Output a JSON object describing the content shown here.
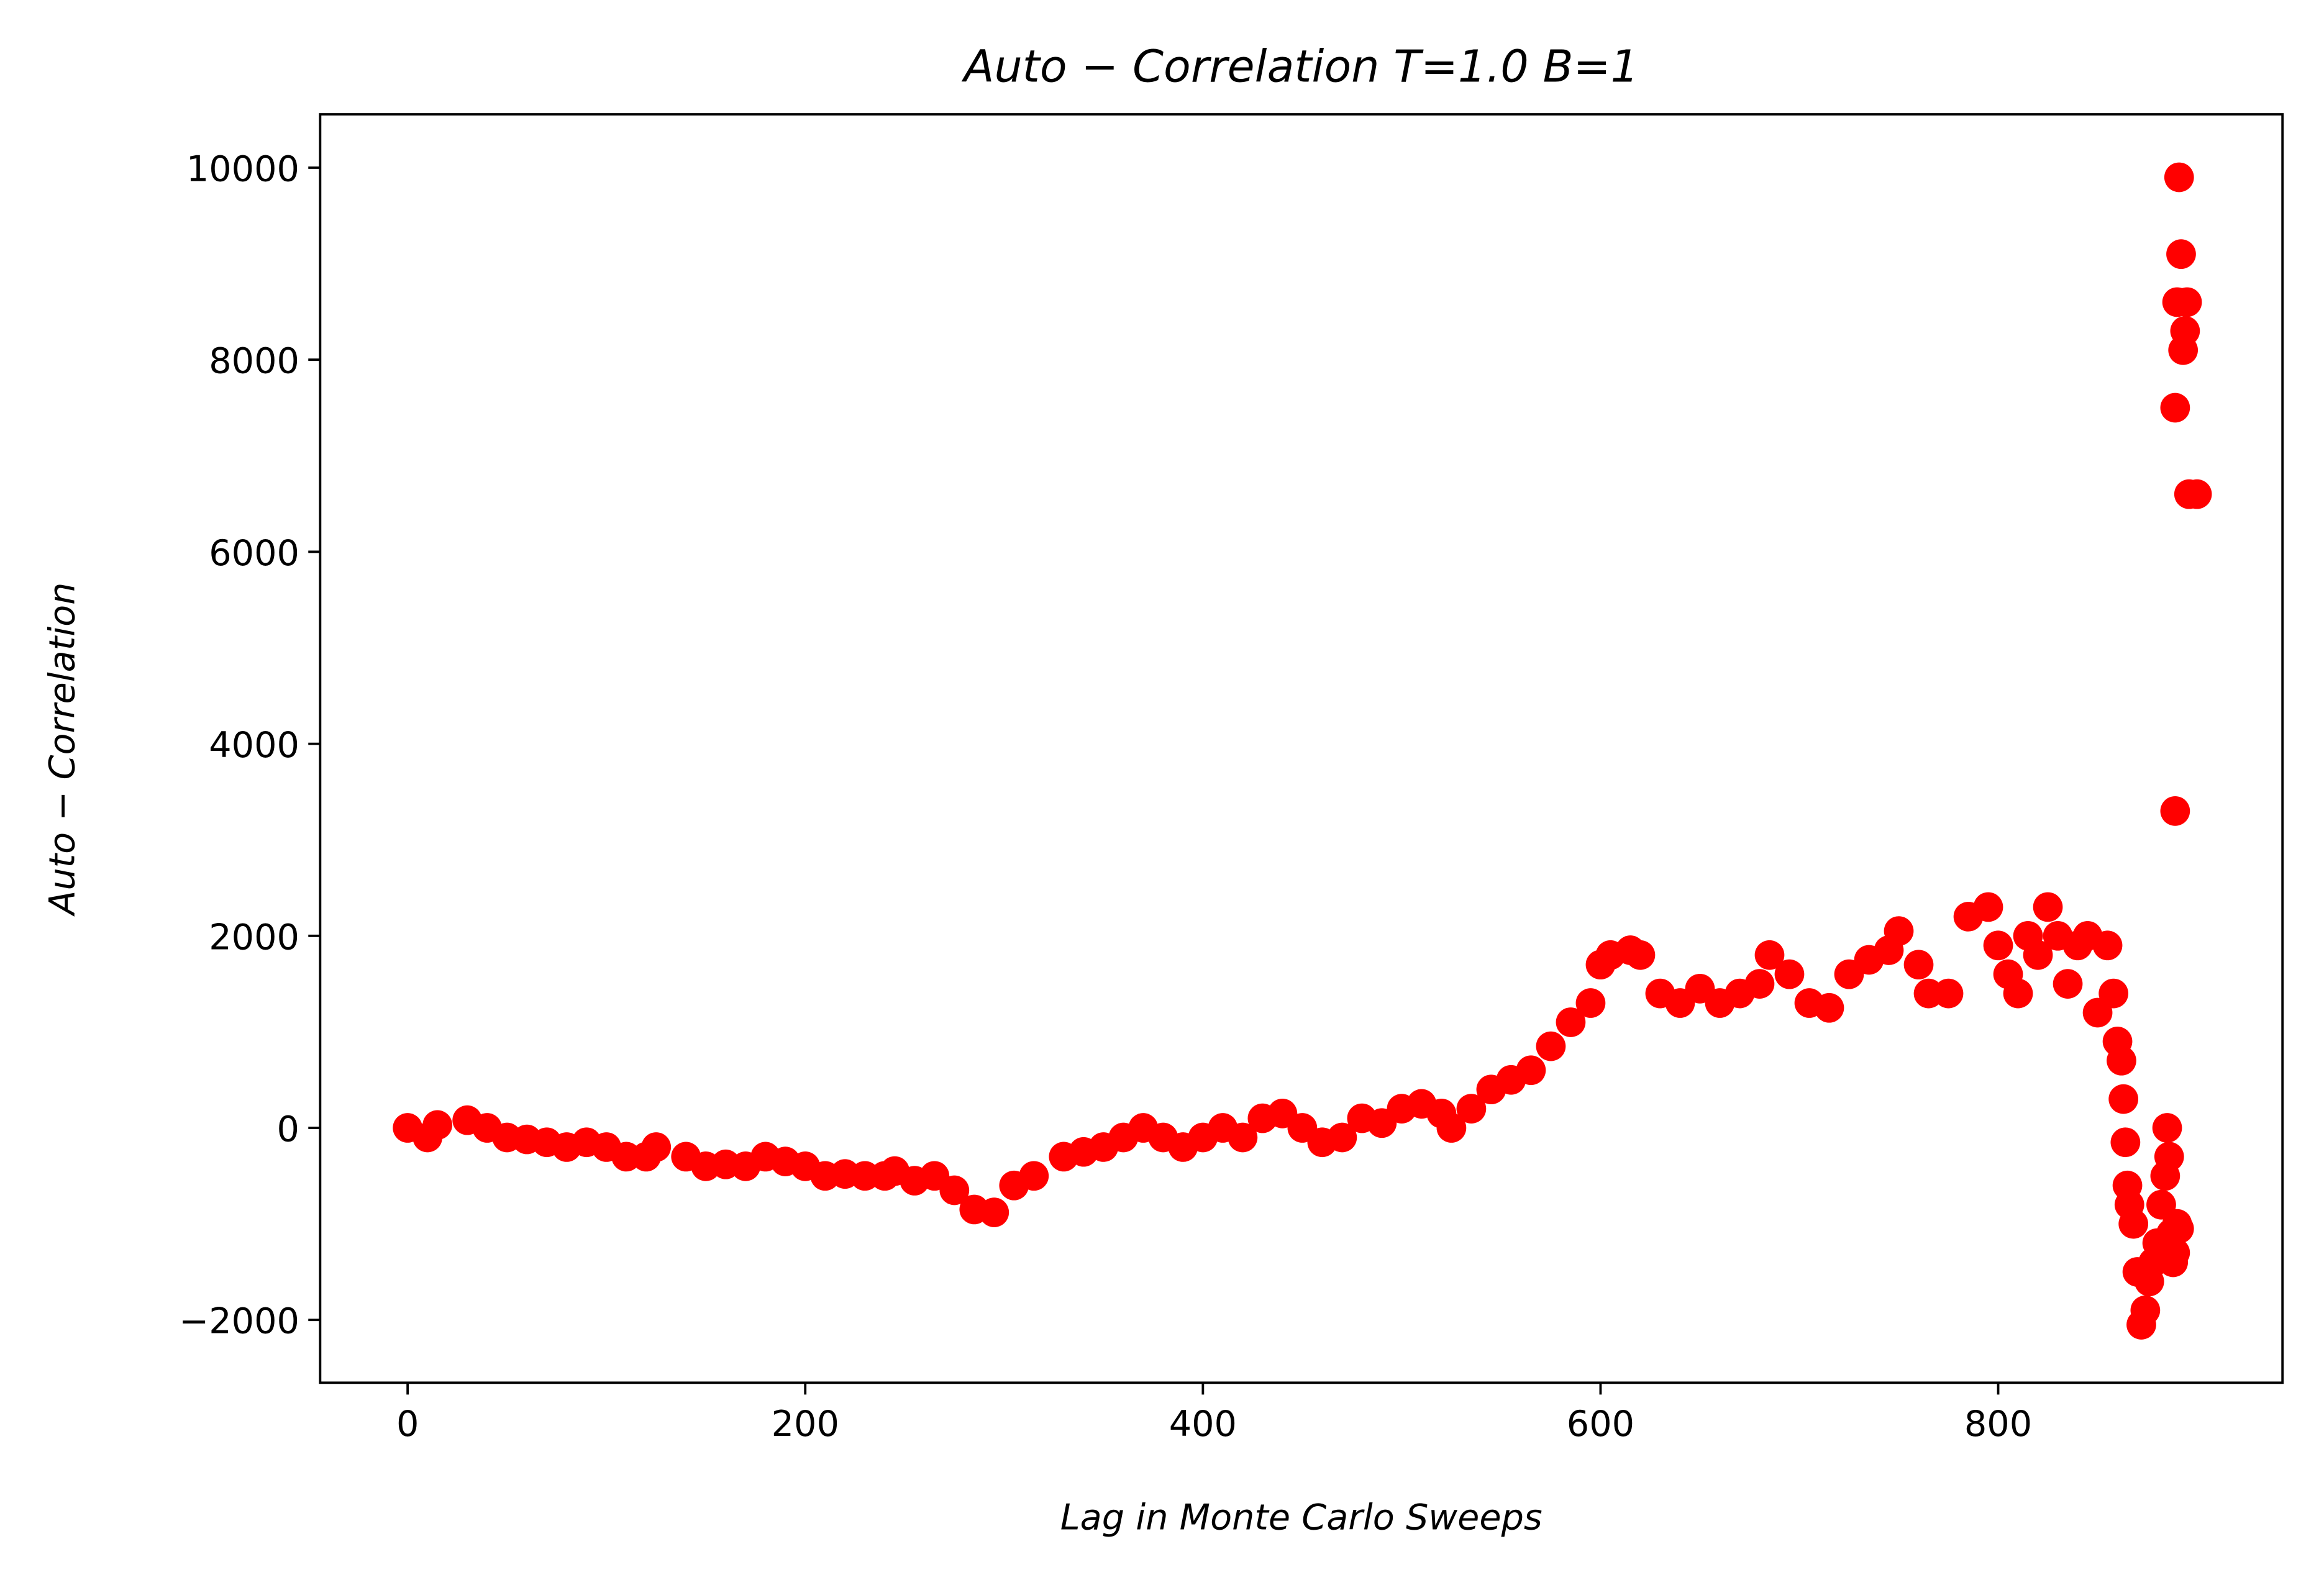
{
  "chart_data": {
    "type": "scatter",
    "title": "Auto − Correlation T=1.0 B=1",
    "xlabel": "Lag in Monte Carlo Sweeps",
    "ylabel": "Auto − Correlation",
    "color": "#ff0000",
    "x": [
      0,
      10,
      15,
      30,
      40,
      50,
      60,
      70,
      80,
      90,
      100,
      110,
      120,
      125,
      140,
      150,
      160,
      170,
      180,
      190,
      200,
      210,
      220,
      230,
      240,
      245,
      255,
      265,
      275,
      285,
      295,
      305,
      315,
      330,
      340,
      350,
      360,
      370,
      380,
      390,
      400,
      410,
      420,
      430,
      440,
      450,
      460,
      470,
      480,
      490,
      500,
      510,
      520,
      525,
      535,
      545,
      555,
      565,
      575,
      585,
      595,
      600,
      605,
      615,
      620,
      630,
      640,
      650,
      660,
      670,
      680,
      685,
      695,
      705,
      715,
      725,
      735,
      745,
      750,
      760,
      765,
      775,
      785,
      795,
      800,
      805,
      810,
      815,
      820,
      825,
      830,
      835,
      840,
      845,
      850,
      855,
      858,
      860,
      862,
      863,
      864,
      865,
      866,
      868,
      870,
      872,
      874,
      876,
      878,
      880,
      882,
      884,
      885,
      886,
      887,
      888,
      889,
      890,
      891,
      889,
      889,
      890,
      891,
      892,
      893,
      894,
      895,
      896,
      900
    ],
    "values": [
      0,
      -100,
      30,
      80,
      0,
      -100,
      -120,
      -150,
      -200,
      -150,
      -200,
      -300,
      -300,
      -200,
      -300,
      -400,
      -380,
      -400,
      -300,
      -350,
      -400,
      -500,
      -480,
      -500,
      -500,
      -450,
      -550,
      -500,
      -650,
      -850,
      -880,
      -600,
      -500,
      -300,
      -250,
      -200,
      -100,
      0,
      -100,
      -200,
      -100,
      0,
      -100,
      100,
      150,
      0,
      -150,
      -100,
      100,
      50,
      200,
      250,
      150,
      0,
      200,
      400,
      500,
      600,
      850,
      1100,
      1300,
      1700,
      1800,
      1850,
      1800,
      1400,
      1300,
      1450,
      1300,
      1400,
      1500,
      1800,
      1600,
      1300,
      1250,
      1600,
      1750,
      1850,
      2050,
      1700,
      1400,
      1400,
      2200,
      2300,
      1900,
      1600,
      1400,
      2000,
      1800,
      2300,
      2000,
      1500,
      1900,
      2000,
      1200,
      1900,
      1400,
      900,
      700,
      300,
      -150,
      -600,
      -800,
      -1000,
      -1500,
      -2050,
      -1900,
      -1600,
      -1400,
      -1200,
      -800,
      -500,
      0,
      -300,
      -1100,
      -1400,
      -1300,
      -1000,
      -1050,
      3300,
      7500,
      8600,
      9900,
      9100,
      8100,
      8300,
      8600,
      6600,
      6600
    ],
    "xlim": [
      -44,
      943
    ],
    "ylim": [
      -2654,
      10556
    ],
    "xticks": [
      0,
      200,
      400,
      600,
      800
    ],
    "yticks": [
      {
        "value": -2000,
        "label": "−2000"
      },
      0,
      2000,
      4000,
      6000,
      8000,
      10000
    ]
  }
}
